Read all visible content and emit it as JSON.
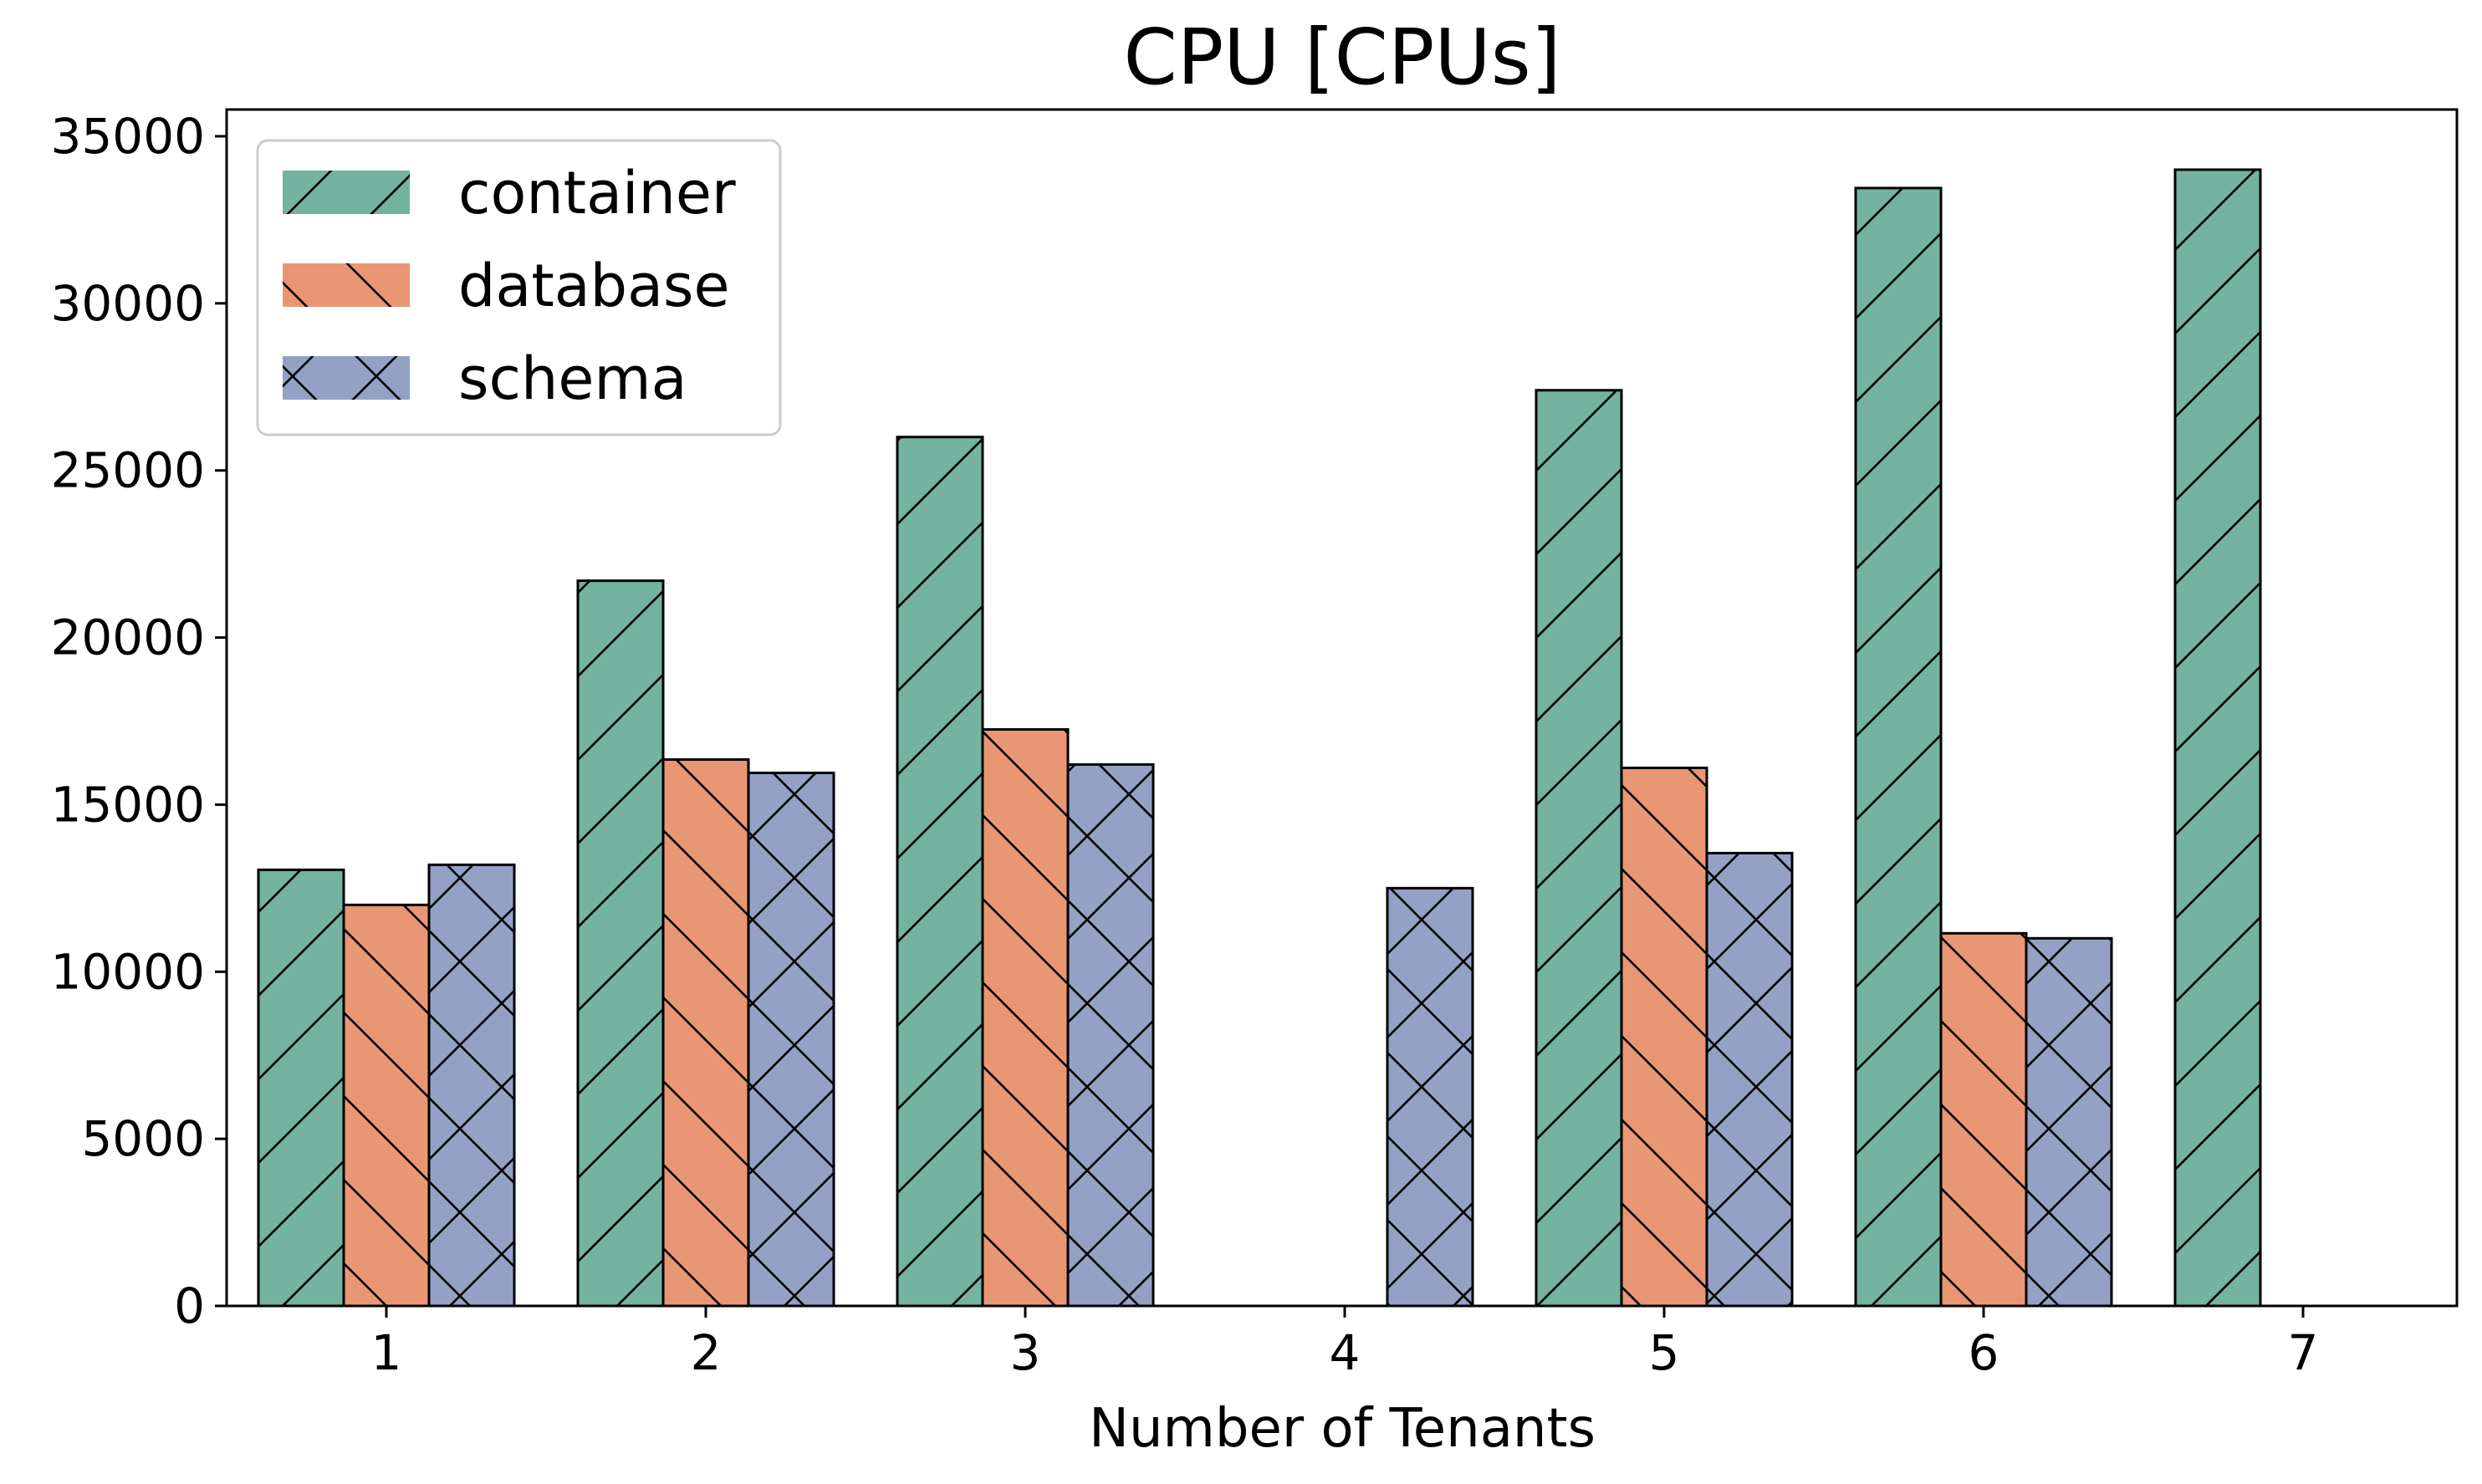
{
  "chart_data": {
    "type": "bar",
    "title": "CPU [CPUs]",
    "xlabel": "Number of Tenants",
    "ylabel": "",
    "categories": [
      "1",
      "2",
      "3",
      "4",
      "5",
      "6",
      "7"
    ],
    "series": [
      {
        "name": "container",
        "values": [
          13050,
          21700,
          26000,
          null,
          27400,
          33450,
          34000
        ],
        "color": "#73b39f",
        "hatch": "forward"
      },
      {
        "name": "database",
        "values": [
          12000,
          16350,
          17250,
          null,
          16100,
          11150,
          null
        ],
        "color": "#e99675",
        "hatch": "back"
      },
      {
        "name": "schema",
        "values": [
          13200,
          15950,
          16200,
          12500,
          13550,
          11000,
          null
        ],
        "color": "#93a1c4",
        "hatch": "cross"
      }
    ],
    "ylim": [
      0,
      35800
    ],
    "yticks": [
      0,
      5000,
      10000,
      15000,
      20000,
      25000,
      30000,
      35000
    ],
    "legend_position": "top-left",
    "grid": false
  }
}
